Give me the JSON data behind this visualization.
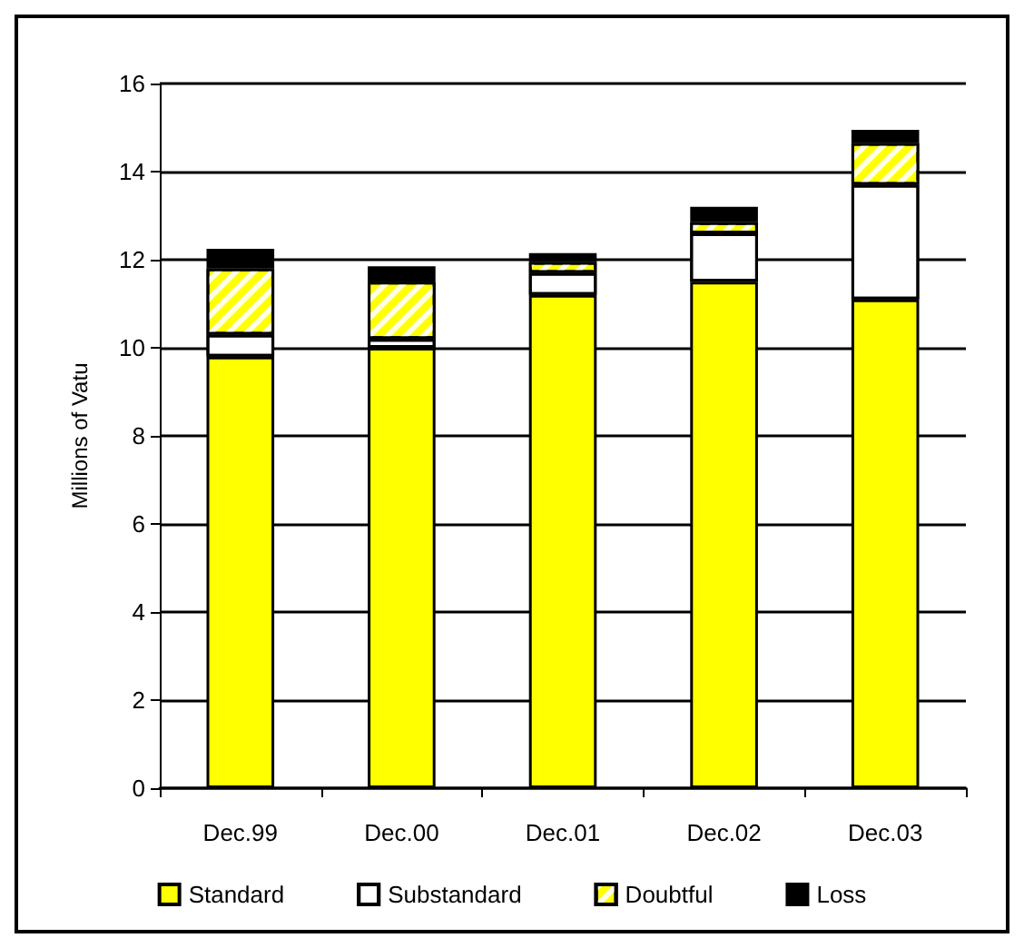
{
  "chart_data": {
    "type": "bar",
    "ylabel": "Millions of Vatu",
    "categories": [
      "Dec.99",
      "Dec.00",
      "Dec.01",
      "Dec.02",
      "Dec.03"
    ],
    "stacked": true,
    "series": [
      {
        "name": "Standard",
        "color": "#ffff00",
        "values": [
          9.8,
          10.0,
          11.2,
          11.5,
          11.1
        ]
      },
      {
        "name": "Substandard",
        "color": "#ffffff",
        "values": [
          0.5,
          0.2,
          0.5,
          1.1,
          2.6
        ]
      },
      {
        "name": "Doubtful",
        "color": "#ffff00",
        "values": [
          1.5,
          1.3,
          0.25,
          0.25,
          0.95
        ]
      },
      {
        "name": "Loss",
        "color": "#000000",
        "values": [
          0.45,
          0.35,
          0.2,
          0.35,
          0.3
        ]
      }
    ],
    "ylim": [
      0,
      16
    ],
    "yticks": [
      0,
      2,
      4,
      6,
      8,
      10,
      12,
      14,
      16
    ],
    "grid": "y",
    "legend": "bottom"
  }
}
